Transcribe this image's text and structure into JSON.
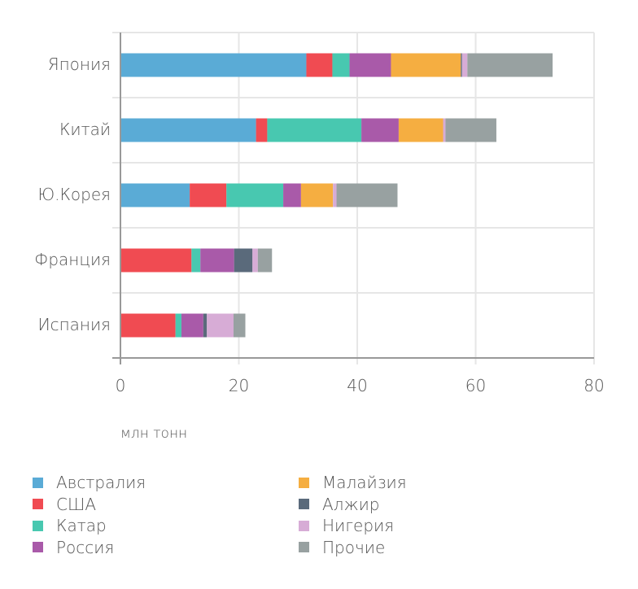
{
  "chart_data": {
    "type": "bar",
    "orientation": "horizontal",
    "stacked": true,
    "title": "",
    "xlabel": "млн тонн",
    "ylabel": "",
    "xlim": [
      0,
      80
    ],
    "xticks": [
      0,
      20,
      40,
      60,
      80
    ],
    "grid": true,
    "legend_position": "bottom",
    "categories": [
      "Япония",
      "Китай",
      "Ю.Корея",
      "Франция",
      "Испания"
    ],
    "series": [
      {
        "name": "Австралия",
        "color": "#5aabd6",
        "values": [
          31.4,
          22.9,
          11.7,
          0.0,
          0.0
        ]
      },
      {
        "name": "США",
        "color": "#f04b52",
        "values": [
          4.4,
          1.9,
          6.2,
          12.0,
          9.3
        ]
      },
      {
        "name": "Катар",
        "color": "#48c8b0",
        "values": [
          2.9,
          15.9,
          9.6,
          1.5,
          1.0
        ]
      },
      {
        "name": "Россия",
        "color": "#a95aa9",
        "values": [
          7.0,
          6.3,
          3.0,
          5.7,
          3.7
        ]
      },
      {
        "name": "Малайзия",
        "color": "#f5ae41",
        "values": [
          11.8,
          7.5,
          5.4,
          0.0,
          0.0
        ]
      },
      {
        "name": "Алжир",
        "color": "#5a6a7b",
        "values": [
          0.2,
          0.0,
          0.0,
          3.1,
          0.6
        ]
      },
      {
        "name": "Нигерия",
        "color": "#d7acd6",
        "values": [
          0.9,
          0.4,
          0.6,
          0.9,
          4.5
        ]
      },
      {
        "name": "Прочие",
        "color": "#98a1a1",
        "values": [
          14.4,
          8.6,
          10.3,
          2.4,
          2.0
        ]
      }
    ],
    "totals": [
      73.0,
      63.5,
      46.8,
      25.6,
      21.1
    ]
  },
  "axis": {
    "ticks": [
      "0",
      "20",
      "40",
      "60",
      "80"
    ],
    "unit_label": "млн тонн"
  },
  "legend": {
    "items": [
      {
        "label": "Австралия",
        "color": "#5aabd6"
      },
      {
        "label": "США",
        "color": "#f04b52"
      },
      {
        "label": "Катар",
        "color": "#48c8b0"
      },
      {
        "label": "Россия",
        "color": "#a95aa9"
      },
      {
        "label": "Малайзия",
        "color": "#f5ae41"
      },
      {
        "label": "Алжир",
        "color": "#5a6a7b"
      },
      {
        "label": "Нигерия",
        "color": "#d7acd6"
      },
      {
        "label": "Прочие",
        "color": "#98a1a1"
      }
    ]
  }
}
